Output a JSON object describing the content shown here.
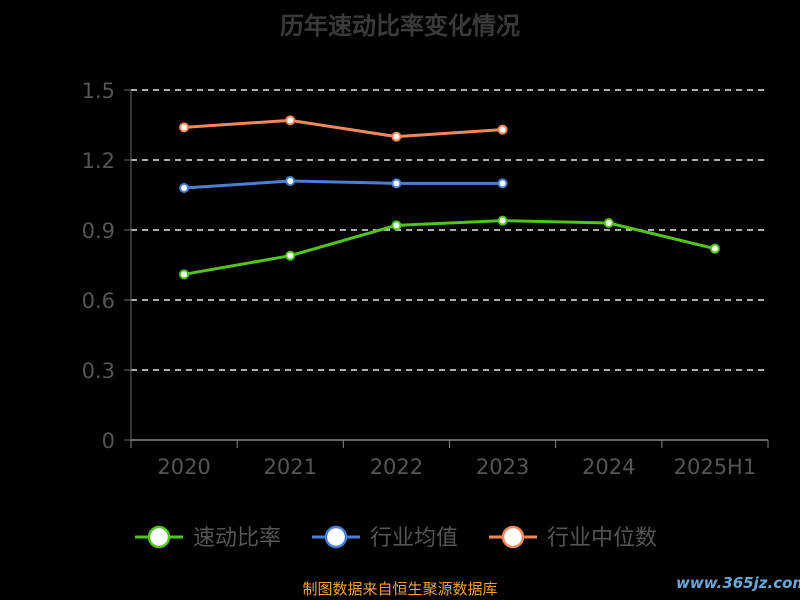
{
  "chart_data": {
    "type": "line",
    "title": "历年速动比率变化情况",
    "categories": [
      "2020",
      "2021",
      "2022",
      "2023",
      "2024",
      "2025H1"
    ],
    "ylim": [
      0,
      1.5
    ],
    "yticks": [
      "0",
      "0.3",
      "0.6",
      "0.9",
      "1.2",
      "1.5"
    ],
    "grid": true,
    "legend_position": "bottom",
    "series": [
      {
        "name": "速动比率",
        "color": "#52c41a",
        "values": [
          0.71,
          0.79,
          0.92,
          0.94,
          0.93,
          0.82
        ]
      },
      {
        "name": "行业均值",
        "color": "#4a7fd6",
        "values": [
          1.08,
          1.11,
          1.1,
          1.1,
          null,
          null
        ]
      },
      {
        "name": "行业中位数",
        "color": "#f4875a",
        "values": [
          1.34,
          1.37,
          1.3,
          1.33,
          null,
          null
        ]
      }
    ]
  },
  "footer": {
    "source": "制图数据来自恒生聚源数据库",
    "watermark": "www.365jz.com"
  }
}
